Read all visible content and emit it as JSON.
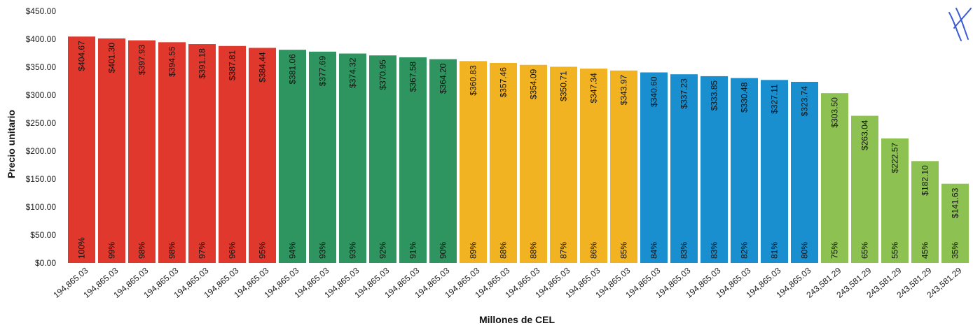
{
  "chart_data": {
    "type": "bar",
    "title": "",
    "xlabel": "Millones de CEL",
    "ylabel": "Precio unitario",
    "ylim": [
      0,
      450
    ],
    "yticks": [
      0,
      50,
      100,
      150,
      200,
      250,
      300,
      350,
      400,
      450
    ],
    "ytick_labels": [
      "$0.00",
      "$50.00",
      "$100.00",
      "$150.00",
      "$200.00",
      "$250.00",
      "$300.00",
      "$350.00",
      "$400.00",
      "$450.00"
    ],
    "grid": false,
    "legend": "none",
    "categories": [
      "194,865.03",
      "194,865.03",
      "194,865.03",
      "194,865.03",
      "194,865.03",
      "194,865.03",
      "194,865.03",
      "194,865.03",
      "194,865.03",
      "194,865.03",
      "194,865.03",
      "194,865.03",
      "194,865.03",
      "194,865.03",
      "194,865.03",
      "194,865.03",
      "194,865.03",
      "194,865.03",
      "194,865.03",
      "194,865.03",
      "194,865.03",
      "194,865.03",
      "194,865.03",
      "194,865.03",
      "194,865.03",
      "243,581.29",
      "243,581.29",
      "243,581.29",
      "243,581.29",
      "243,581.29"
    ],
    "values": [
      404.67,
      401.3,
      397.93,
      394.55,
      391.18,
      387.81,
      384.44,
      381.06,
      377.69,
      374.32,
      370.95,
      367.58,
      364.2,
      360.83,
      357.46,
      354.09,
      350.71,
      347.34,
      343.97,
      340.6,
      337.23,
      333.85,
      330.48,
      327.11,
      323.74,
      303.5,
      263.04,
      222.57,
      182.1,
      141.63
    ],
    "value_labels": [
      "$404.67",
      "$401.30",
      "$397.93",
      "$394.55",
      "$391.18",
      "$387.81",
      "$384.44",
      "$381.06",
      "$377.69",
      "$374.32",
      "$370.95",
      "$367.58",
      "$364.20",
      "$360.83",
      "$357.46",
      "$354.09",
      "$350.71",
      "$347.34",
      "$343.97",
      "$340.60",
      "$337.23",
      "$333.85",
      "$330.48",
      "$327.11",
      "$323.74",
      "$303.50",
      "$263.04",
      "$222.57",
      "$182.10",
      "$141.63"
    ],
    "percent_labels": [
      "100%",
      "99%",
      "98%",
      "98%",
      "97%",
      "96%",
      "95%",
      "94%",
      "93%",
      "93%",
      "92%",
      "91%",
      "90%",
      "89%",
      "88%",
      "88%",
      "87%",
      "86%",
      "85%",
      "84%",
      "83%",
      "83%",
      "82%",
      "81%",
      "80%",
      "75%",
      "65%",
      "55%",
      "45%",
      "35%"
    ],
    "bar_colors": [
      "#e0382c",
      "#e0382c",
      "#e0382c",
      "#e0382c",
      "#e0382c",
      "#e0382c",
      "#e0382c",
      "#2f9560",
      "#2f9560",
      "#2f9560",
      "#2f9560",
      "#2f9560",
      "#2f9560",
      "#f2b322",
      "#f2b322",
      "#f2b322",
      "#f2b322",
      "#f2b322",
      "#f2b322",
      "#1a8fd0",
      "#1a8fd0",
      "#1a8fd0",
      "#1a8fd0",
      "#1a8fd0",
      "#1a8fd0",
      "#8dc152",
      "#8dc152",
      "#8dc152",
      "#8dc152",
      "#8dc152"
    ]
  }
}
